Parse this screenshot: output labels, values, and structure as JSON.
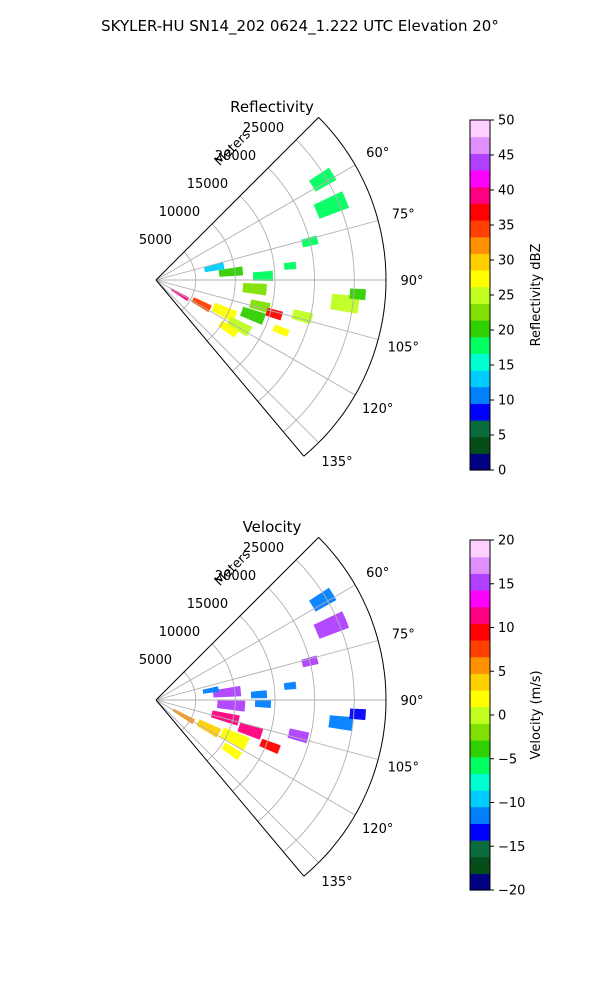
{
  "suptitle": "SKYLER-HU  SN14_202  0624_1.222 UTC Elevation 20°",
  "colors": {
    "grid": "#b0b0b0",
    "frame": "#000000",
    "reflectivity_scale": [
      "#000080",
      "#064d1a",
      "#0a6b3c",
      "#0000ff",
      "#0080ff",
      "#00ccff",
      "#00ffd0",
      "#00ff60",
      "#30d000",
      "#80e000",
      "#c0ff20",
      "#ffff00",
      "#ffd000",
      "#ff9000",
      "#ff4000",
      "#ff0000",
      "#ff0080",
      "#ff00ff",
      "#b040ff",
      "#e090ff",
      "#ffd0ff"
    ],
    "velocity_scale": [
      "#000080",
      "#064d1a",
      "#0a6b3c",
      "#0000ff",
      "#0080ff",
      "#00ccff",
      "#00ffd0",
      "#00ff60",
      "#30d000",
      "#80e000",
      "#c0ff20",
      "#ffff00",
      "#ffd000",
      "#ff9000",
      "#ff4000",
      "#ff0000",
      "#ff0080",
      "#ff00ff",
      "#b040ff",
      "#e090ff",
      "#ffd0ff"
    ]
  },
  "chart_data": [
    {
      "type": "heatmap",
      "projection": "polar-sector",
      "title": "Reflectivity",
      "radial_label": "Meters",
      "radial_ticks": [
        5000,
        10000,
        15000,
        20000,
        25000
      ],
      "radial_tick_labels": [
        "5000",
        "10000",
        "15000",
        "20000",
        "25000"
      ],
      "rlim": [
        0,
        29000
      ],
      "theta_ticks": [
        60,
        75,
        90,
        105,
        120,
        135
      ],
      "theta_tick_labels": [
        "60°",
        "75°",
        "90°",
        "105°",
        "120°",
        "135°"
      ],
      "thetalim": [
        45,
        140
      ],
      "grid": true,
      "colorbar": {
        "label": "Reflectivity dBZ",
        "range": [
          0,
          50
        ],
        "ticks": [
          0,
          5,
          10,
          15,
          20,
          25,
          30,
          35,
          40,
          45,
          50
        ],
        "tick_labels": [
          "0",
          "5",
          "10",
          "15",
          "20",
          "25",
          "30",
          "35",
          "40",
          "45",
          "50"
        ]
      },
      "echo_regions": [
        {
          "theta": 121,
          "range": 3500,
          "dtheta": 6,
          "drange": 2500,
          "value": 40
        },
        {
          "theta": 118,
          "range": 6500,
          "dtheta": 7,
          "drange": 2500,
          "value": 35
        },
        {
          "theta": 115,
          "range": 9500,
          "dtheta": 8,
          "drange": 3000,
          "value": 27
        },
        {
          "theta": 119,
          "range": 12000,
          "dtheta": 6,
          "drange": 3000,
          "value": 24
        },
        {
          "theta": 124,
          "range": 11000,
          "dtheta": 5,
          "drange": 2500,
          "value": 27
        },
        {
          "theta": 110,
          "range": 13000,
          "dtheta": 6,
          "drange": 3000,
          "value": 21
        },
        {
          "theta": 104,
          "range": 13500,
          "dtheta": 5,
          "drange": 2500,
          "value": 23
        },
        {
          "theta": 106,
          "range": 15500,
          "dtheta": 4,
          "drange": 2000,
          "value": 37
        },
        {
          "theta": 112,
          "range": 17000,
          "dtheta": 3,
          "drange": 2000,
          "value": 28
        },
        {
          "theta": 95,
          "range": 12500,
          "dtheta": 6,
          "drange": 3000,
          "value": 22
        },
        {
          "theta": 84,
          "range": 9500,
          "dtheta": 6,
          "drange": 3000,
          "value": 21
        },
        {
          "theta": 78,
          "range": 7500,
          "dtheta": 6,
          "drange": 2500,
          "value": 13
        },
        {
          "theta": 88,
          "range": 13500,
          "dtheta": 5,
          "drange": 2500,
          "value": 19
        },
        {
          "theta": 104,
          "range": 19000,
          "dtheta": 4,
          "drange": 2500,
          "value": 26
        },
        {
          "theta": 97,
          "range": 24000,
          "dtheta": 5,
          "drange": 3500,
          "value": 25
        },
        {
          "theta": 94,
          "range": 25500,
          "dtheta": 3,
          "drange": 2000,
          "value": 20
        },
        {
          "theta": 76,
          "range": 20000,
          "dtheta": 3,
          "drange": 2000,
          "value": 19
        },
        {
          "theta": 67,
          "range": 24000,
          "dtheta": 5,
          "drange": 4000,
          "value": 19
        },
        {
          "theta": 59,
          "range": 24500,
          "dtheta": 4,
          "drange": 3000,
          "value": 18
        },
        {
          "theta": 84,
          "range": 17000,
          "dtheta": 3,
          "drange": 1500,
          "value": 17
        }
      ]
    },
    {
      "type": "heatmap",
      "projection": "polar-sector",
      "title": "Velocity",
      "radial_label": "Meters",
      "radial_ticks": [
        5000,
        10000,
        15000,
        20000,
        25000
      ],
      "radial_tick_labels": [
        "5000",
        "10000",
        "15000",
        "20000",
        "25000"
      ],
      "rlim": [
        0,
        29000
      ],
      "theta_ticks": [
        60,
        75,
        90,
        105,
        120,
        135
      ],
      "theta_tick_labels": [
        "60°",
        "75°",
        "90°",
        "105°",
        "120°",
        "135°"
      ],
      "thetalim": [
        45,
        140
      ],
      "grid": true,
      "colorbar": {
        "label": "Velocity (m/s)",
        "range": [
          -20,
          20
        ],
        "ticks": [
          -20,
          -15,
          -10,
          -5,
          0,
          5,
          10,
          15,
          20
        ],
        "tick_labels": [
          "−20",
          "−15",
          "−10",
          "−5",
          "0",
          "5",
          "10",
          "15",
          "20"
        ]
      },
      "echo_regions": [
        {
          "theta": 120,
          "range": 4000,
          "dtheta": 7,
          "drange": 3000,
          "value": 6
        },
        {
          "theta": 118,
          "range": 7500,
          "dtheta": 8,
          "drange": 3000,
          "value": 3
        },
        {
          "theta": 116,
          "range": 11000,
          "dtheta": 8,
          "drange": 3500,
          "value": 2
        },
        {
          "theta": 124,
          "range": 11500,
          "dtheta": 5,
          "drange": 2500,
          "value": 1
        },
        {
          "theta": 104,
          "range": 9000,
          "dtheta": 7,
          "drange": 3500,
          "value": 11
        },
        {
          "theta": 108,
          "range": 12500,
          "dtheta": 6,
          "drange": 3000,
          "value": 11
        },
        {
          "theta": 112,
          "range": 15500,
          "dtheta": 4,
          "drange": 2500,
          "value": 10
        },
        {
          "theta": 94,
          "range": 9500,
          "dtheta": 7,
          "drange": 3500,
          "value": 15
        },
        {
          "theta": 84,
          "range": 9000,
          "dtheta": 7,
          "drange": 3500,
          "value": 16
        },
        {
          "theta": 80,
          "range": 7000,
          "dtheta": 5,
          "drange": 2000,
          "value": -12
        },
        {
          "theta": 92,
          "range": 13500,
          "dtheta": 4,
          "drange": 2000,
          "value": -11
        },
        {
          "theta": 87,
          "range": 13000,
          "dtheta": 4,
          "drange": 2000,
          "value": -12
        },
        {
          "theta": 104,
          "range": 18500,
          "dtheta": 4,
          "drange": 2500,
          "value": 16
        },
        {
          "theta": 97,
          "range": 23500,
          "dtheta": 4,
          "drange": 3000,
          "value": -11
        },
        {
          "theta": 94,
          "range": 25500,
          "dtheta": 3,
          "drange": 2000,
          "value": -13
        },
        {
          "theta": 76,
          "range": 20000,
          "dtheta": 3,
          "drange": 2000,
          "value": 16
        },
        {
          "theta": 67,
          "range": 24000,
          "dtheta": 5,
          "drange": 4000,
          "value": 16
        },
        {
          "theta": 59,
          "range": 24500,
          "dtheta": 4,
          "drange": 3000,
          "value": -12
        },
        {
          "theta": 84,
          "range": 17000,
          "dtheta": 3,
          "drange": 1500,
          "value": -11
        }
      ]
    }
  ]
}
